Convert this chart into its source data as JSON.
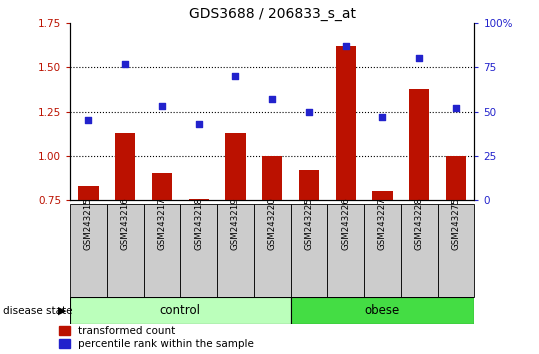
{
  "title": "GDS3688 / 206833_s_at",
  "samples": [
    "GSM243215",
    "GSM243216",
    "GSM243217",
    "GSM243218",
    "GSM243219",
    "GSM243220",
    "GSM243225",
    "GSM243226",
    "GSM243227",
    "GSM243228",
    "GSM243275"
  ],
  "red_bars": [
    0.83,
    1.13,
    0.9,
    0.755,
    1.13,
    1.0,
    0.92,
    1.62,
    0.8,
    1.38,
    1.0
  ],
  "blue_dots": [
    45,
    77,
    53,
    43,
    70,
    57,
    50,
    87,
    47,
    80,
    52
  ],
  "control_indices": [
    0,
    1,
    2,
    3,
    4,
    5
  ],
  "obese_indices": [
    6,
    7,
    8,
    9,
    10
  ],
  "ylim_left": [
    0.75,
    1.75
  ],
  "ylim_right": [
    0,
    100
  ],
  "yticks_left": [
    0.75,
    1.0,
    1.25,
    1.5,
    1.75
  ],
  "yticks_right": [
    0,
    25,
    50,
    75,
    100
  ],
  "ytick_labels_right": [
    "0",
    "25",
    "50",
    "75",
    "100%"
  ],
  "bar_color": "#bb1100",
  "dot_color": "#2222cc",
  "control_color": "#bbffbb",
  "obese_color": "#44dd44",
  "label_bg_color": "#cccccc",
  "bar_width": 0.55,
  "legend_labels": [
    "transformed count",
    "percentile rank within the sample"
  ],
  "disease_state_label": "disease state",
  "control_label": "control",
  "obese_label": "obese",
  "grid_color": "black",
  "grid_linestyle": "dotted",
  "grid_yticks": [
    1.0,
    1.25,
    1.5
  ]
}
